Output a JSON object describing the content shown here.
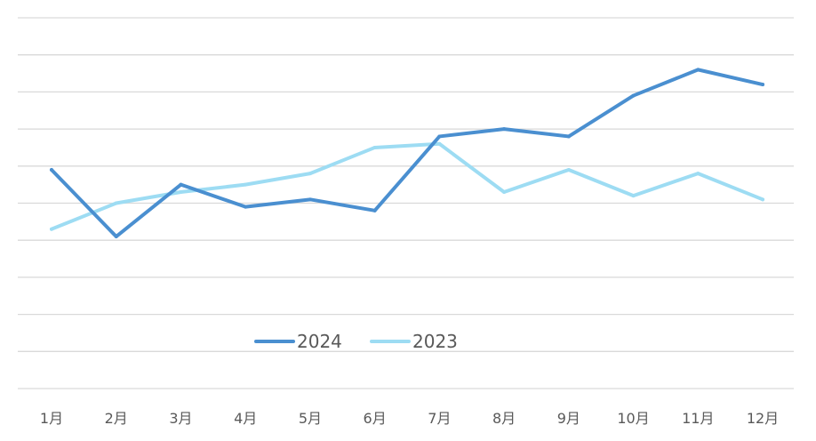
{
  "chart_data": {
    "type": "line",
    "title": "",
    "xlabel": "",
    "ylabel": "",
    "categories": [
      "1月",
      "2月",
      "3月",
      "4月",
      "5月",
      "6月",
      "7月",
      "8月",
      "9月",
      "10月",
      "11月",
      "12月"
    ],
    "ylim": [
      0,
      10
    ],
    "grid": true,
    "legend_position": "bottom-center",
    "series": [
      {
        "name": "2024",
        "color": "#4a8fd0",
        "values": [
          5.9,
          4.1,
          5.5,
          4.9,
          5.1,
          4.8,
          6.8,
          7.0,
          6.8,
          7.9,
          8.6,
          8.2
        ]
      },
      {
        "name": "2023",
        "color": "#9ddcf3",
        "values": [
          4.3,
          5.0,
          5.3,
          5.5,
          5.8,
          6.5,
          6.6,
          5.3,
          5.9,
          5.2,
          5.8,
          5.1
        ]
      }
    ]
  }
}
